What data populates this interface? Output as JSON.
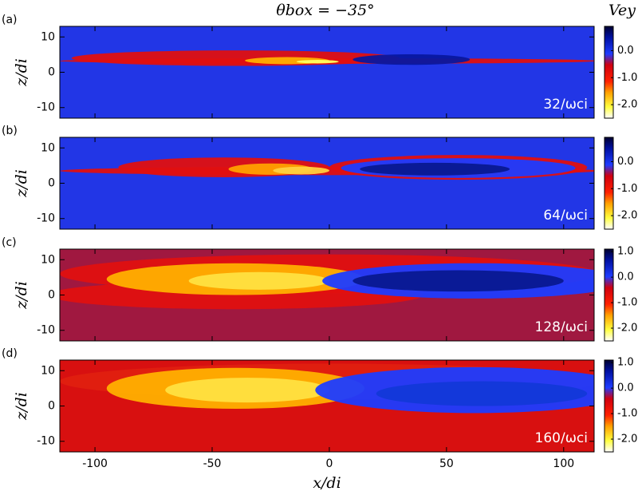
{
  "figure": {
    "title": "θbox = −35°",
    "colorbar_label": "Vey",
    "x_label": "x/di",
    "y_label": "z/di",
    "xlim": [
      -115,
      113
    ],
    "xticks": [
      -100,
      -50,
      0,
      50,
      100
    ],
    "panels": [
      {
        "label": "(a)",
        "time_label": "32/ωci",
        "ylim": [
          -13,
          13
        ],
        "yticks": [
          -10,
          0,
          10
        ],
        "clim": [
          -2.5,
          0.9
        ],
        "cticks": [
          {
            "value": 0,
            "label": "0.0"
          },
          {
            "value": -1,
            "label": "-1.0"
          },
          {
            "value": -2,
            "label": "-2.0"
          }
        ]
      },
      {
        "label": "(b)",
        "time_label": "64/ωci",
        "ylim": [
          -13,
          13
        ],
        "yticks": [
          -10,
          0,
          10
        ],
        "clim": [
          -2.5,
          0.9
        ],
        "cticks": [
          {
            "value": 0,
            "label": "0.0"
          },
          {
            "value": -1,
            "label": "-1.0"
          },
          {
            "value": -2,
            "label": "-2.0"
          }
        ]
      },
      {
        "label": "(c)",
        "time_label": "128/ωci",
        "ylim": [
          -13,
          13
        ],
        "yticks": [
          -10,
          0,
          10
        ],
        "clim": [
          -2.5,
          1.1
        ],
        "cticks": [
          {
            "value": 1,
            "label": "1.0"
          },
          {
            "value": 0,
            "label": "0.0"
          },
          {
            "value": -1,
            "label": "-1.0"
          },
          {
            "value": -2,
            "label": "-2.0"
          }
        ]
      },
      {
        "label": "(d)",
        "time_label": "160/ωci",
        "ylim": [
          -13,
          13
        ],
        "yticks": [
          -10,
          0,
          10
        ],
        "clim": [
          -2.5,
          1.1
        ],
        "cticks": [
          {
            "value": 1,
            "label": "1.0"
          },
          {
            "value": 0,
            "label": "0.0"
          },
          {
            "value": -1,
            "label": "-1.0"
          },
          {
            "value": -2,
            "label": "-2.0"
          }
        ]
      }
    ]
  }
}
